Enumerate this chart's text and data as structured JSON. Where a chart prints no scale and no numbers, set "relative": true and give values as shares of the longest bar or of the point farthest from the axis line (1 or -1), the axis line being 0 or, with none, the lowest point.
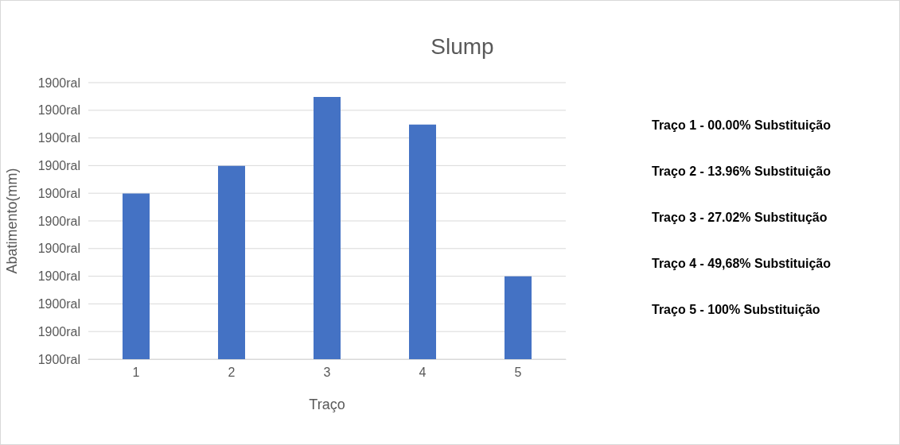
{
  "chart_data": {
    "type": "bar",
    "title": "Slump",
    "xlabel": "Traço",
    "ylabel": "Abatimento(mm)",
    "categories": [
      "1",
      "2",
      "3",
      "4",
      "5"
    ],
    "values": [
      0.632,
      0.737,
      1,
      0.895,
      0.316
    ],
    "color": "#4472c4",
    "relative": true,
    "grid": "y",
    "annotations": [
      "1900ral",
      "1900ral",
      "1900ral",
      "1900ral",
      "1900ral",
      "1900ral",
      "1900ral",
      "1900ral",
      "1900ral",
      "1900ral",
      "1900ral",
      "Traço 1 - 00.00% Substituição",
      "Traço 2 - 13.96% Substituição",
      "Traço 3 - 27.02% Substitução",
      "Traço 4 - 49,68% Substituição",
      "Traço 5 - 100% Substituição"
    ]
  }
}
